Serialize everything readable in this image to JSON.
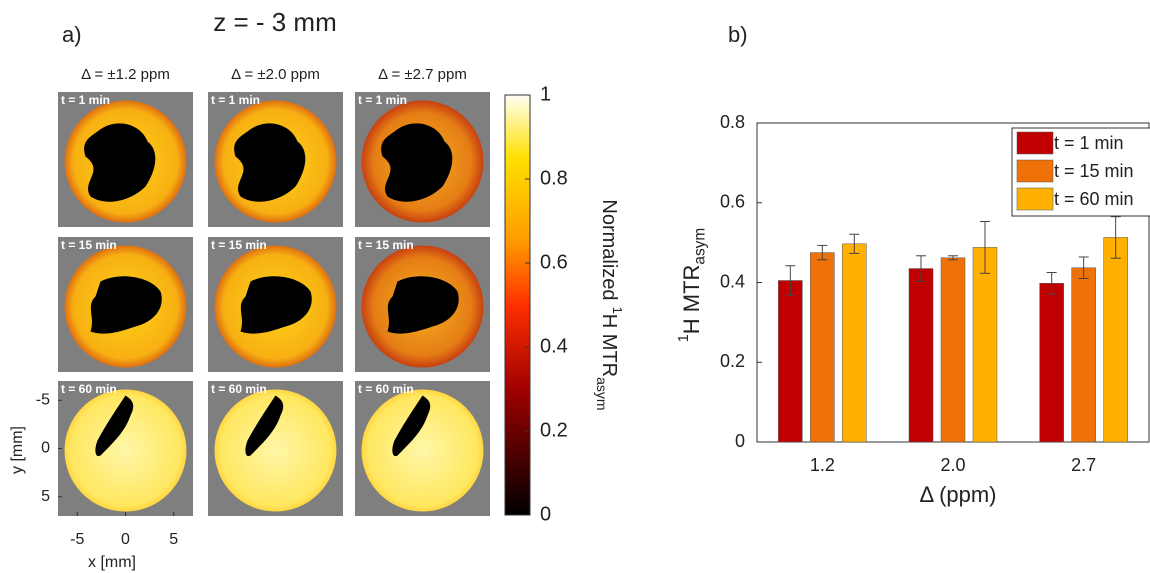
{
  "chart_data": [
    {
      "type": "image-grid",
      "label": "a)",
      "title": "z = - 3 mm",
      "columns": [
        "Δ = ±1.2 ppm",
        "Δ = ±2.0 ppm",
        "Δ = ±2.7 ppm"
      ],
      "rows": [
        "t = 1 min",
        "t = 15 min",
        "t = 60 min"
      ],
      "xlabel": "x [mm]",
      "ylabel": "y [mm]",
      "xlim": [
        -7,
        7
      ],
      "xticks": [
        -5,
        0,
        5
      ],
      "ylim": [
        -7,
        7
      ],
      "yticks": [
        -5,
        0,
        5
      ],
      "colorbar": {
        "lim": [
          0,
          1
        ],
        "ticks": [
          0,
          0.2,
          0.4,
          0.6,
          0.8,
          1
        ],
        "label": {
          "prefix": "Normalized",
          "sup": "1",
          "text": "H MTR",
          "sub": "asym"
        }
      }
    },
    {
      "type": "bar",
      "label": "b)",
      "categories": [
        "1.2",
        "2.0",
        "2.7"
      ],
      "xlabel": "Δ (ppm)",
      "ylabel": {
        "sup": "1",
        "text": "H MTR",
        "sub": "asym"
      },
      "ylim": [
        0,
        0.8
      ],
      "yticks": [
        0,
        0.2,
        0.4,
        0.6,
        0.8
      ],
      "legend": "upper right",
      "series": [
        {
          "name": "t = 1 min",
          "color": "#c00000",
          "values": [
            0.405,
            0.435,
            0.398
          ],
          "errors": [
            0.037,
            0.032,
            0.027
          ]
        },
        {
          "name": "t = 15 min",
          "color": "#ee7208",
          "values": [
            0.475,
            0.462,
            0.437
          ],
          "errors": [
            0.018,
            0.005,
            0.027
          ]
        },
        {
          "name": "t = 60 min",
          "color": "#ffb000",
          "values": [
            0.497,
            0.488,
            0.513
          ],
          "errors": [
            0.024,
            0.065,
            0.052
          ]
        }
      ]
    }
  ]
}
